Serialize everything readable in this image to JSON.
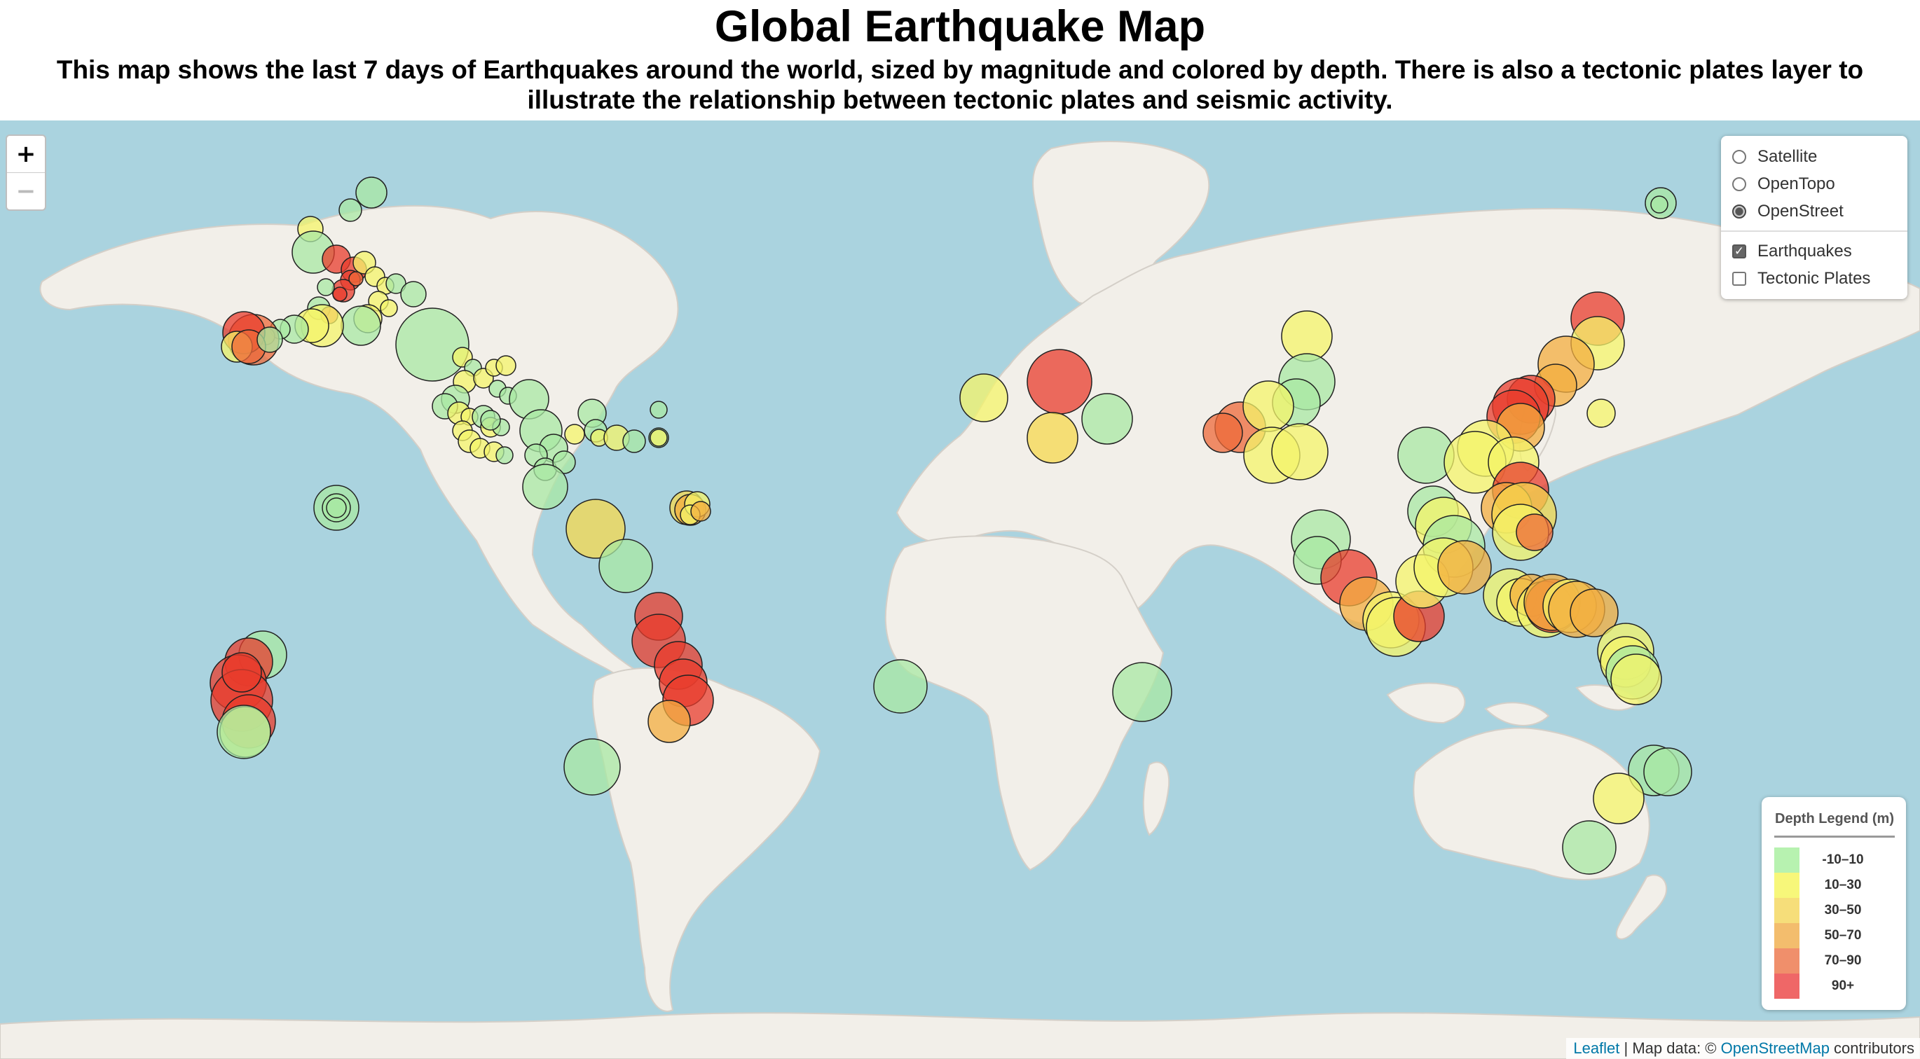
{
  "header": {
    "title": "Global Earthquake Map",
    "subtitle": "This map shows the last 7 days of Earthquakes around the world, sized by magnitude and colored by depth. There is also a tectonic plates layer to illustrate the relationship between tectonic plates and seismic activity."
  },
  "zoom": {
    "in_label": "+",
    "out_label": "−"
  },
  "layer_control": {
    "base_layers": [
      {
        "label": "Satellite",
        "selected": false
      },
      {
        "label": "OpenTopo",
        "selected": false
      },
      {
        "label": "OpenStreet",
        "selected": true
      }
    ],
    "overlays": [
      {
        "label": "Earthquakes",
        "checked": true
      },
      {
        "label": "Tectonic Plates",
        "checked": false
      }
    ]
  },
  "legend": {
    "title": "Depth Legend (m)",
    "items": [
      {
        "label": "-10–10",
        "color": "#b7f2b0"
      },
      {
        "label": "10–30",
        "color": "#f7f77a"
      },
      {
        "label": "30–50",
        "color": "#f6de7a"
      },
      {
        "label": "50–70",
        "color": "#f3bd6d"
      },
      {
        "label": "70–90",
        "color": "#f08f6b"
      },
      {
        "label": "90+",
        "color": "#ef6767"
      }
    ]
  },
  "attribution": {
    "leaflet": "Leaflet",
    "separator": " | Map data: © ",
    "osm": "OpenStreetMap",
    "suffix": " contributors"
  },
  "colors": {
    "ocean": "#aad3df",
    "land": "#f2efe9",
    "marker_stroke": "#222222"
  },
  "depth_colors": [
    "#a8e8a3",
    "#f4f46a",
    "#f5d84e",
    "#f3ad3f",
    "#ee6a3a",
    "#e83c2c"
  ]
}
